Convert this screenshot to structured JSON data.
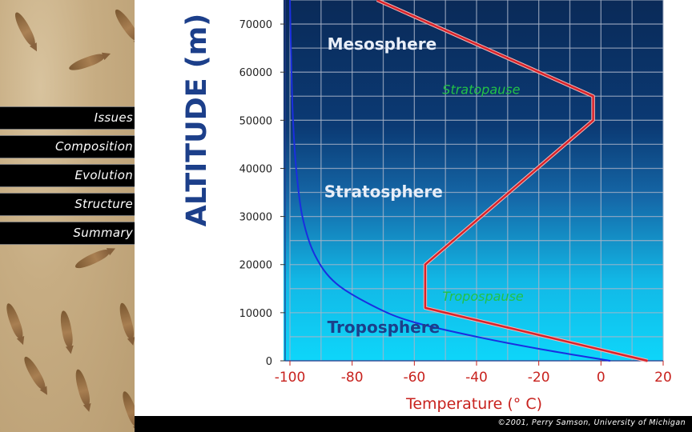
{
  "nav": {
    "items": [
      {
        "label": "Issues",
        "top": 133
      },
      {
        "label": "Composition",
        "top": 169
      },
      {
        "label": "Evolution",
        "top": 205
      },
      {
        "label": "Structure",
        "top": 241
      },
      {
        "label": "Summary",
        "top": 277
      }
    ]
  },
  "footer": {
    "credit": "©2001, Perry Samson, University of Michigan"
  },
  "chart_data": {
    "type": "line",
    "title": "",
    "xlabel": "Temperature (° C)",
    "ylabel": "ALTITUDE (m)",
    "xlim": [
      -100,
      20
    ],
    "ylim": [
      0,
      75000
    ],
    "x_ticks": [
      -100,
      -80,
      -60,
      -40,
      -20,
      0,
      20
    ],
    "y_ticks": [
      0,
      10000,
      20000,
      30000,
      40000,
      50000,
      60000,
      70000
    ],
    "grid": true,
    "series": [
      {
        "name": "",
        "color": "#d8232a",
        "x": [
          15,
          -56.5,
          -56.5,
          -2.5,
          -2.5,
          -72
        ],
        "y": [
          0,
          11000,
          20000,
          50000,
          55000,
          75000
        ]
      },
      {
        "name": "",
        "color": "#1a2ee0",
        "x": [
          3,
          -20,
          -40,
          -60,
          -72,
          -85,
          -92,
          -96,
          -98,
          -99,
          -99.5,
          -100
        ],
        "y": [
          0,
          2500,
          5000,
          8000,
          11000,
          16000,
          22000,
          30000,
          40000,
          50000,
          60000,
          75000
        ]
      }
    ],
    "annotations": [
      {
        "text": "Mesosphere",
        "x": -88,
        "y": 64700,
        "color": "#e8eef8",
        "weight": "bold",
        "size": 20
      },
      {
        "text": "Stratopause",
        "x": -51,
        "y": 55500,
        "color": "#22c247",
        "style": "italic",
        "size": 16
      },
      {
        "text": "Stratosphere",
        "x": -89,
        "y": 34000,
        "color": "#e8eef8",
        "weight": "bold",
        "size": 20
      },
      {
        "text": "Tropospause",
        "x": -51,
        "y": 12500,
        "color": "#22c247",
        "style": "italic",
        "size": 16
      },
      {
        "text": "Troposphere",
        "x": -88,
        "y": 5800,
        "color": "#1c3f8a",
        "weight": "bold",
        "size": 20
      }
    ]
  }
}
